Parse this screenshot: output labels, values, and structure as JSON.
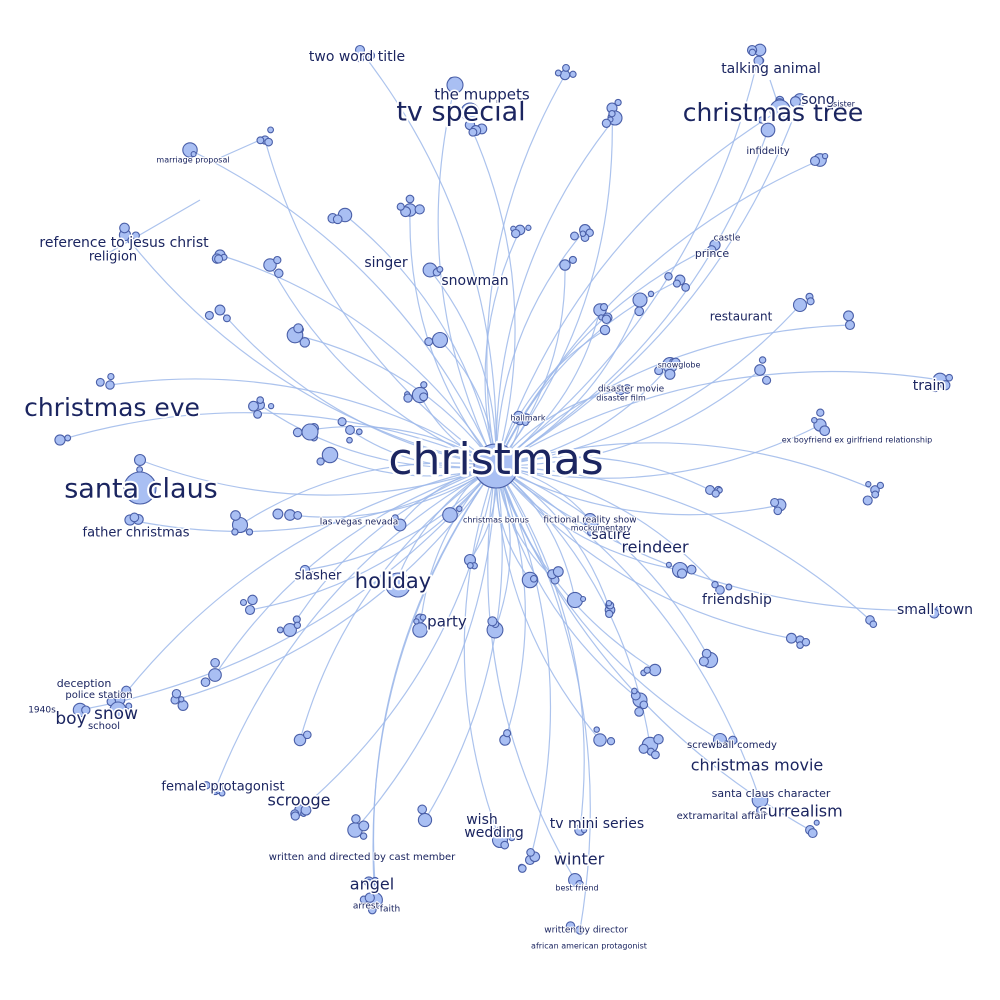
{
  "graph": {
    "hub": "christmas",
    "labels": [
      "christmas",
      "tv special",
      "the muppets",
      "two word title",
      "christmas tree",
      "talking animal",
      "song",
      "sister",
      "infidelity",
      "reference to jesus christ",
      "religion",
      "singer",
      "snowman",
      "christmas eve",
      "santa claus",
      "father christmas",
      "holiday",
      "slasher",
      "party",
      "las vegas nevada",
      "boy",
      "snow",
      "deception",
      "police station",
      "school",
      "1940s",
      "female protagonist",
      "scrooge",
      "angel",
      "arrest",
      "faith",
      "written and directed by cast member",
      "wish",
      "wedding",
      "tv mini series",
      "winter",
      "best friend",
      "written by director",
      "african american protagonist",
      "christmas movie",
      "screwball comedy",
      "santa claus character",
      "surrealism",
      "extramarital affair",
      "small town",
      "friendship",
      "reindeer",
      "satire",
      "fictional reality show",
      "mockumentary",
      "christmas bonus",
      "train",
      "ex boyfriend ex girlfriend relationship",
      "restaurant",
      "prince",
      "castle",
      "disaster movie",
      "disaster film",
      "snowglobe",
      "hallmark",
      "marriage proposal"
    ]
  }
}
